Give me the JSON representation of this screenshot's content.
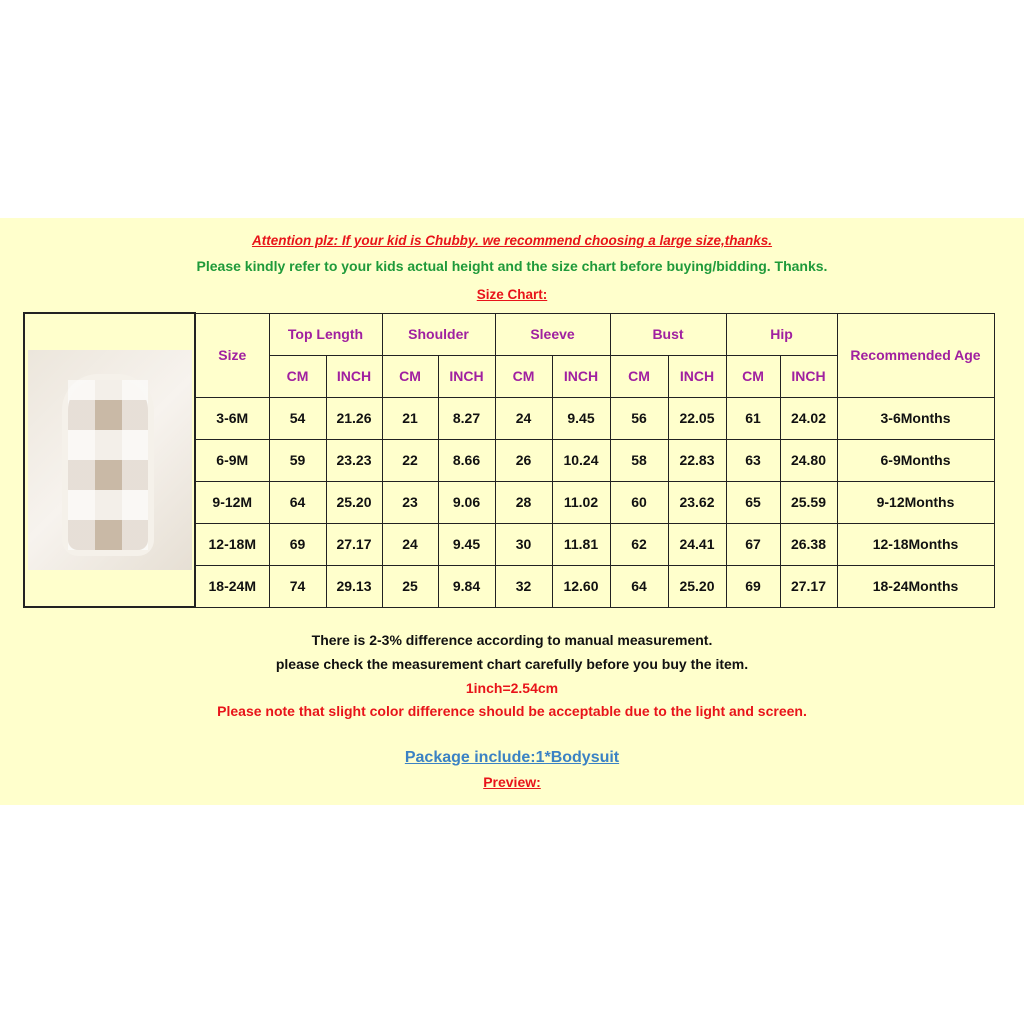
{
  "notices": {
    "attention": "Attention plz: If your kid is Chubby. we recommend choosing a large size,thanks.",
    "refer": "Please kindly refer to your kids actual height and the size chart before buying/bidding. Thanks.",
    "size_chart": "Size Chart:"
  },
  "table": {
    "size_header": "Size",
    "groups": [
      "Top Length",
      "Shoulder",
      "Sleeve",
      "Bust",
      "Hip"
    ],
    "units": [
      "CM",
      "INCH"
    ],
    "age_header": "Recommended Age",
    "rows": [
      [
        "3-6M",
        "54",
        "21.26",
        "21",
        "8.27",
        "24",
        "9.45",
        "56",
        "22.05",
        "61",
        "24.02",
        "3-6Months"
      ],
      [
        "6-9M",
        "59",
        "23.23",
        "22",
        "8.66",
        "26",
        "10.24",
        "58",
        "22.83",
        "63",
        "24.80",
        "6-9Months"
      ],
      [
        "9-12M",
        "64",
        "25.20",
        "23",
        "9.06",
        "28",
        "11.02",
        "60",
        "23.62",
        "65",
        "25.59",
        "9-12Months"
      ],
      [
        "12-18M",
        "69",
        "27.17",
        "24",
        "9.45",
        "30",
        "11.81",
        "62",
        "24.41",
        "67",
        "26.38",
        "12-18Months"
      ],
      [
        "18-24M",
        "74",
        "29.13",
        "25",
        "9.84",
        "32",
        "12.60",
        "64",
        "25.20",
        "69",
        "27.17",
        "18-24Months"
      ]
    ]
  },
  "footer": {
    "difference": "There is 2-3% difference according to manual measurement.",
    "check": "please check the measurement chart carefully before you buy the item.",
    "inch": "1inch=2.54cm",
    "color_note": "Please note that slight color difference should be acceptable due to the light and screen.",
    "package": "Package include:1*Bodysuit",
    "preview": "Preview:"
  },
  "colors": {
    "background": "#ffffcc",
    "red": "#e8141a",
    "green": "#1f9a3a",
    "header": "#a020a0",
    "blue": "#3b82c4"
  }
}
